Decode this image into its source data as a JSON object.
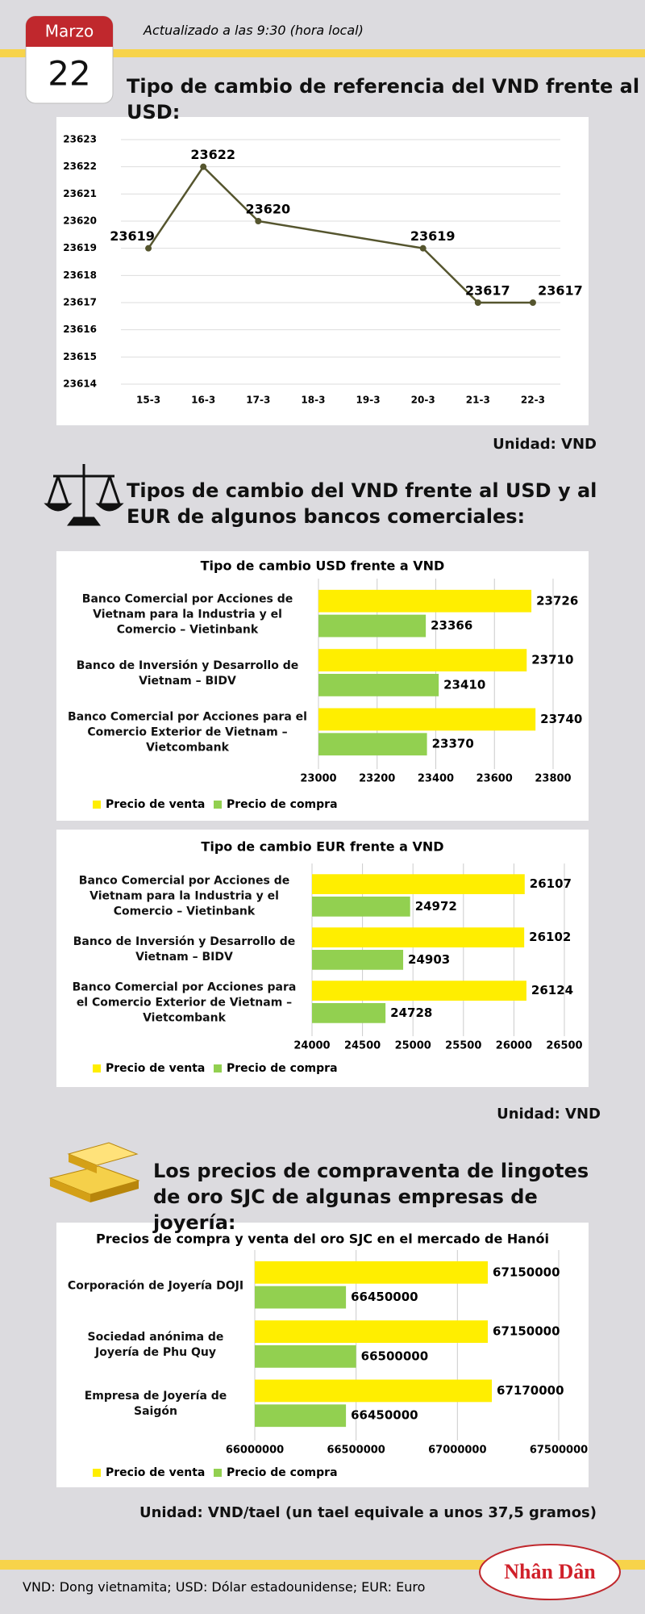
{
  "header": {
    "month": "Marzo",
    "day": "22",
    "updated": "Actualizado a las 9:30 (hora local)"
  },
  "sections": [
    {
      "title": "Tipo de cambio de referencia del VND frente al USD:",
      "unit": "Unidad: VND"
    },
    {
      "title": "Tipos de cambio del VND frente al USD y al EUR de algunos bancos comerciales:",
      "unit": "Unidad: VND"
    },
    {
      "title": "Los precios de compraventa de lingotes de oro SJC de algunas empresas de joyería:",
      "unit": "Unidad: VND/tael (un tael equivale a unos 37,5 gramos)"
    }
  ],
  "footer": {
    "note": "VND: Dong vietnamita; USD: Dólar estadounidense; EUR: Euro",
    "logo": "Nhân Dân"
  },
  "chart_data": [
    {
      "type": "line",
      "x": [
        "15-3",
        "16-3",
        "17-3",
        "20-3",
        "21-3",
        "22-3"
      ],
      "xticks": [
        "15-3",
        "16-3",
        "17-3",
        "18-3",
        "19-3",
        "20-3",
        "21-3",
        "22-3"
      ],
      "values": [
        23619,
        23622,
        23620,
        23619,
        23617,
        23617
      ],
      "color": "#55552e",
      "ylim": [
        23614,
        23623
      ],
      "yticks": [
        23614,
        23615,
        23616,
        23617,
        23618,
        23619,
        23620,
        23621,
        23622,
        23623
      ],
      "grid": true
    },
    {
      "type": "bar",
      "orientation": "horizontal",
      "title": "Tipo de cambio USD frente a VND",
      "categories": [
        "Banco Comercial por Acciones de Vietnam para la Industria y el Comercio – Vietinbank",
        "Banco de Inversión y Desarrollo de Vietnam – BIDV",
        "Banco Comercial por Acciones para el Comercio Exterior de Vietnam – Vietcombank"
      ],
      "series": [
        {
          "name": "Precio de venta",
          "color": "#ffee00",
          "values": [
            23726,
            23710,
            23740
          ]
        },
        {
          "name": "Precio de compra",
          "color": "#92d050",
          "values": [
            23366,
            23410,
            23370
          ]
        }
      ],
      "xlim": [
        23000,
        23800
      ],
      "xticks": [
        23000,
        23200,
        23400,
        23600,
        23800
      ],
      "grid": true
    },
    {
      "type": "bar",
      "orientation": "horizontal",
      "title": "Tipo de cambio EUR frente a VND",
      "categories": [
        "Banco Comercial por Acciones de Vietnam para la Industria y el Comercio – Vietinbank",
        "Banco de Inversión y Desarrollo de Vietnam – BIDV",
        "Banco Comercial por Acciones para el Comercio Exterior de Vietnam – Vietcombank"
      ],
      "series": [
        {
          "name": "Precio de venta",
          "color": "#ffee00",
          "values": [
            26107,
            26102,
            26124
          ]
        },
        {
          "name": "Precio de compra",
          "color": "#92d050",
          "values": [
            24972,
            24903,
            24728
          ]
        }
      ],
      "xlim": [
        24000,
        26500
      ],
      "xticks": [
        24000,
        24500,
        25000,
        25500,
        26000,
        26500
      ],
      "grid": true
    },
    {
      "type": "bar",
      "orientation": "horizontal",
      "title": "Precios de compra y venta del oro SJC en el mercado de Hanói",
      "categories": [
        "Corporación de Joyería DOJI",
        "Sociedad anónima de Joyería de Phu Quy",
        "Empresa de Joyería de Saigón"
      ],
      "series": [
        {
          "name": "Precio de venta",
          "color": "#ffee00",
          "values": [
            67150000,
            67150000,
            67170000
          ]
        },
        {
          "name": "Precio de compra",
          "color": "#92d050",
          "values": [
            66450000,
            66500000,
            66450000
          ]
        }
      ],
      "xlim": [
        66000000,
        67500000
      ],
      "xticks": [
        66000000,
        66500000,
        67000000,
        67500000
      ],
      "grid": true
    }
  ]
}
